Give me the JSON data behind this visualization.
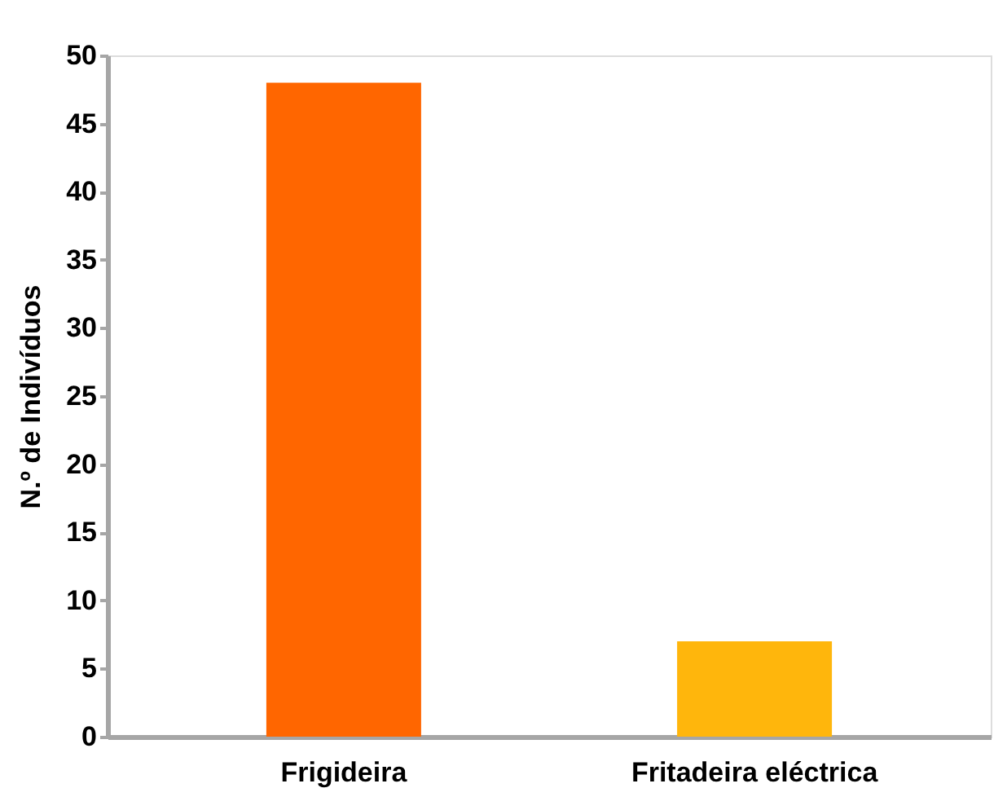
{
  "chart_data": {
    "type": "bar",
    "ylabel": "N.º de Indivíduos",
    "categories": [
      "Frigideira",
      "Fritadeira eléctrica"
    ],
    "values": [
      48,
      7
    ],
    "colors": [
      "#ff6600",
      "#ffb60c"
    ],
    "ylim": [
      0,
      50
    ],
    "yticks": [
      0,
      5,
      10,
      15,
      20,
      25,
      30,
      35,
      40,
      45,
      50
    ],
    "grid": false,
    "legend": false
  }
}
